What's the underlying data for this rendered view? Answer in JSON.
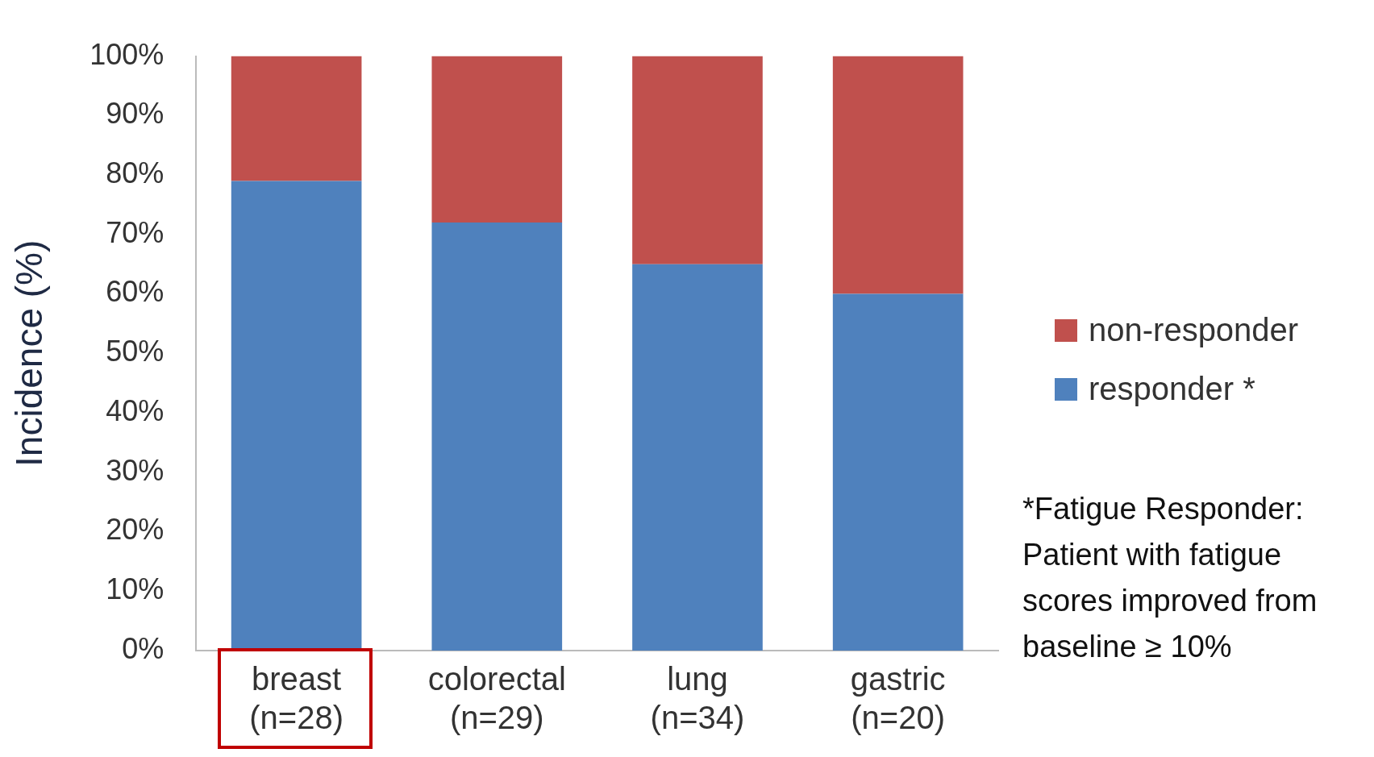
{
  "chart_data": {
    "type": "bar",
    "stacked": true,
    "ylabel": "Incidence (%)",
    "categories": [
      "breast\n(n=28)",
      "colorectal\n(n=29)",
      "lung\n(n=34)",
      "gastric\n(n=20)"
    ],
    "series": [
      {
        "name": "responder *",
        "color": "#4f81bd",
        "values": [
          79,
          72,
          65,
          60
        ]
      },
      {
        "name": "non-responder",
        "color": "#c0504d",
        "values": [
          21,
          28,
          35,
          40
        ]
      }
    ],
    "ylim": [
      0,
      100
    ],
    "yticks": [
      {
        "value": 0,
        "label": "0%"
      },
      {
        "value": 10,
        "label": "10%"
      },
      {
        "value": 20,
        "label": "20%"
      },
      {
        "value": 30,
        "label": "30%"
      },
      {
        "value": 40,
        "label": "40%"
      },
      {
        "value": 50,
        "label": "50%"
      },
      {
        "value": 60,
        "label": "60%"
      },
      {
        "value": 70,
        "label": "70%"
      },
      {
        "value": 80,
        "label": "80%"
      },
      {
        "value": 90,
        "label": "90%"
      },
      {
        "value": 100,
        "label": "100%"
      }
    ],
    "grid": false,
    "legend": "right",
    "annotations": [
      "*Fatigue Responder: Patient with fatigue scores improved from baseline ≥ 10%"
    ]
  }
}
